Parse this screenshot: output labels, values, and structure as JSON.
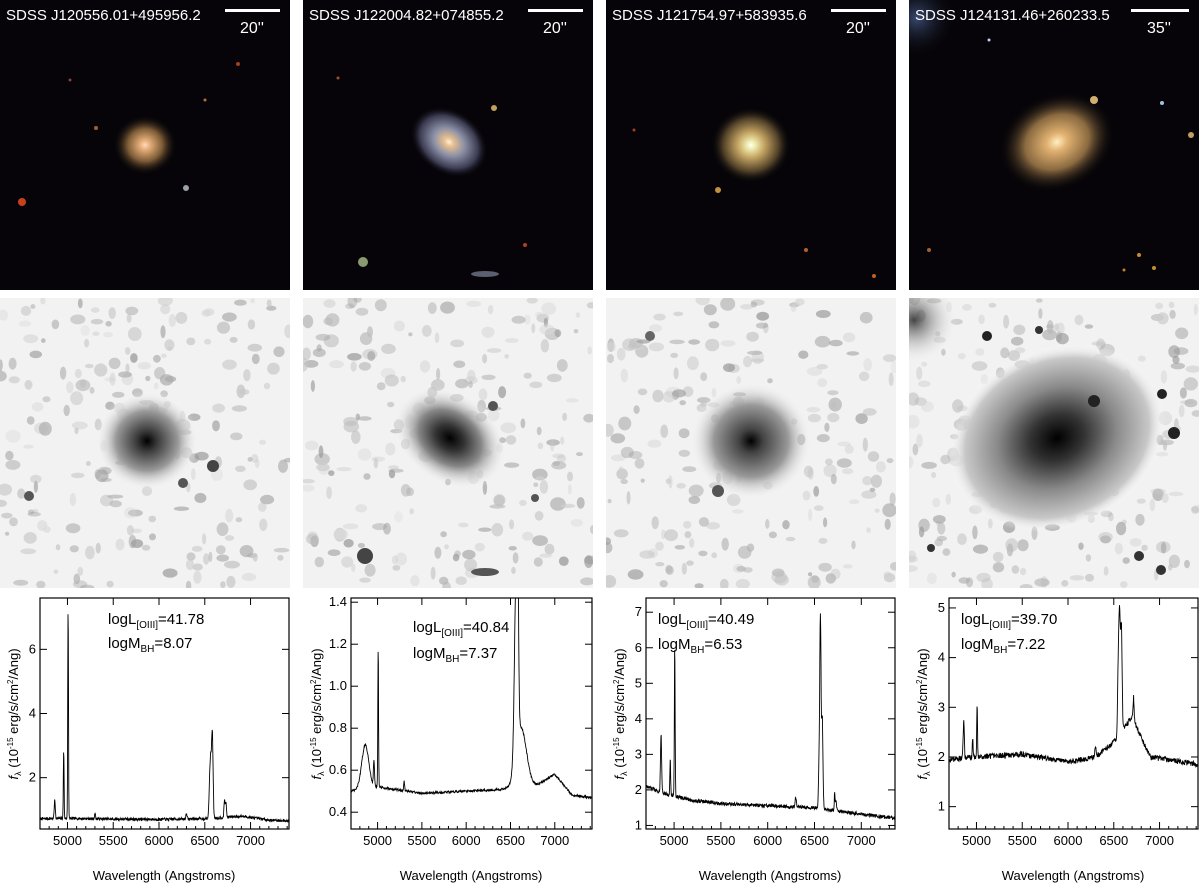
{
  "figure": {
    "panels": [
      {
        "object": "SDSS J120556.01+495956.2",
        "scale_bar": "20''",
        "log_L_OIII": "41.78",
        "log_M_BH": "8.07"
      },
      {
        "object": "SDSS J122004.82+074855.2",
        "scale_bar": "20''",
        "log_L_OIII": "40.84",
        "log_M_BH": "7.37"
      },
      {
        "object": "SDSS J121754.97+583935.6",
        "scale_bar": "20''",
        "log_L_OIII": "40.49",
        "log_M_BH": "6.53"
      },
      {
        "object": "SDSS J124131.46+260233.5",
        "scale_bar": "35''",
        "log_L_OIII": "39.70",
        "log_M_BH": "7.22"
      }
    ],
    "annotation_labels": {
      "logL": "logL",
      "L_sub": "[OIII]",
      "logM": "logM",
      "M_sub": "BH"
    },
    "axis_labels": {
      "x": "Wavelength (Angstroms)",
      "y_prefix": "f",
      "y_sub": "λ",
      "y_main": " (10",
      "y_exp": "-15",
      "y_units": " erg/s/cm",
      "y_sq": "2",
      "y_end": "/Ang)"
    }
  },
  "chart_data": [
    {
      "type": "line",
      "title": "",
      "xlabel": "Wavelength (Angstroms)",
      "ylabel": "fλ (10^-15 erg/s/cm^2/Ang)",
      "xlim": [
        4700,
        7420
      ],
      "ylim": [
        0.4,
        7.6
      ],
      "xticks": [
        5000,
        5500,
        6000,
        6500,
        7000
      ],
      "yticks": [
        2,
        4,
        6
      ],
      "continuum": [
        [
          4700,
          0.72
        ],
        [
          5000,
          0.73
        ],
        [
          5500,
          0.71
        ],
        [
          6000,
          0.7
        ],
        [
          6500,
          0.72
        ],
        [
          6900,
          0.8
        ],
        [
          7200,
          0.68
        ],
        [
          7420,
          0.65
        ]
      ],
      "lines": [
        [
          4861,
          1.3,
          6
        ],
        [
          4959,
          2.85,
          4
        ],
        [
          5007,
          7.3,
          4
        ],
        [
          5300,
          0.9,
          5
        ],
        [
          6300,
          0.9,
          6
        ],
        [
          6548,
          1.0,
          6
        ],
        [
          6563,
          2.6,
          10
        ],
        [
          6583,
          3.2,
          8
        ],
        [
          6716,
          1.3,
          6
        ],
        [
          6731,
          1.2,
          6
        ]
      ],
      "noise": 0.03
    },
    {
      "type": "line",
      "title": "",
      "xlabel": "Wavelength (Angstroms)",
      "ylabel": "fλ (10^-15 erg/s/cm^2/Ang)",
      "xlim": [
        4700,
        7420
      ],
      "ylim": [
        0.32,
        1.42
      ],
      "xticks": [
        5000,
        5500,
        6000,
        6500,
        7000
      ],
      "yticks": [
        0.4,
        0.6,
        0.8,
        1.0,
        1.2,
        1.4
      ],
      "continuum": [
        [
          4700,
          0.5
        ],
        [
          5000,
          0.52
        ],
        [
          5500,
          0.49
        ],
        [
          6000,
          0.5
        ],
        [
          6500,
          0.51
        ],
        [
          6800,
          0.53
        ],
        [
          7000,
          0.58
        ],
        [
          7200,
          0.48
        ],
        [
          7420,
          0.47
        ]
      ],
      "lines": [
        [
          4861,
          0.72,
          40
        ],
        [
          4959,
          0.64,
          6
        ],
        [
          5007,
          1.18,
          4
        ],
        [
          5300,
          0.55,
          5
        ],
        [
          6563,
          1.35,
          18
        ],
        [
          6583,
          1.1,
          8
        ],
        [
          6620,
          0.8,
          60
        ]
      ],
      "noise": 0.025
    },
    {
      "type": "line",
      "title": "",
      "xlabel": "Wavelength (Angstroms)",
      "ylabel": "fλ (10^-15 erg/s/cm^2/Ang)",
      "xlim": [
        4700,
        7360
      ],
      "ylim": [
        0.9,
        7.4
      ],
      "xticks": [
        5000,
        5500,
        6000,
        6500,
        7000
      ],
      "yticks": [
        1,
        2,
        3,
        4,
        5,
        6,
        7
      ],
      "continuum": [
        [
          4700,
          2.1
        ],
        [
          4900,
          1.9
        ],
        [
          5200,
          1.7
        ],
        [
          5600,
          1.6
        ],
        [
          6000,
          1.55
        ],
        [
          6500,
          1.5
        ],
        [
          6900,
          1.35
        ],
        [
          7360,
          1.2
        ]
      ],
      "lines": [
        [
          4861,
          3.6,
          6
        ],
        [
          4959,
          2.9,
          4
        ],
        [
          5007,
          6.1,
          4
        ],
        [
          6300,
          1.8,
          6
        ],
        [
          6548,
          2.5,
          6
        ],
        [
          6563,
          6.9,
          7
        ],
        [
          6583,
          4.0,
          7
        ],
        [
          6716,
          1.9,
          5
        ],
        [
          6731,
          1.7,
          5
        ]
      ],
      "noise": 0.04
    },
    {
      "type": "line",
      "title": "",
      "xlabel": "Wavelength (Angstroms)",
      "ylabel": "fλ (10^-15 erg/s/cm^2/Ang)",
      "xlim": [
        4700,
        7420
      ],
      "ylim": [
        0.55,
        5.2
      ],
      "xticks": [
        5000,
        5500,
        6000,
        6500,
        7000
      ],
      "yticks": [
        1,
        2,
        3,
        4,
        5
      ],
      "continuum": [
        [
          4700,
          1.95
        ],
        [
          5000,
          2.0
        ],
        [
          5500,
          2.05
        ],
        [
          6000,
          1.9
        ],
        [
          6300,
          2.0
        ],
        [
          6500,
          2.3
        ],
        [
          6700,
          2.8
        ],
        [
          6900,
          2.0
        ],
        [
          7420,
          1.85
        ]
      ],
      "lines": [
        [
          4861,
          2.75,
          6
        ],
        [
          4959,
          2.4,
          4
        ],
        [
          5007,
          3.05,
          4
        ],
        [
          6300,
          2.2,
          6
        ],
        [
          6548,
          3.6,
          7
        ],
        [
          6563,
          4.9,
          8
        ],
        [
          6583,
          4.6,
          8
        ],
        [
          6716,
          3.2,
          5
        ],
        [
          6731,
          2.7,
          5
        ]
      ],
      "noise": 0.06
    }
  ]
}
